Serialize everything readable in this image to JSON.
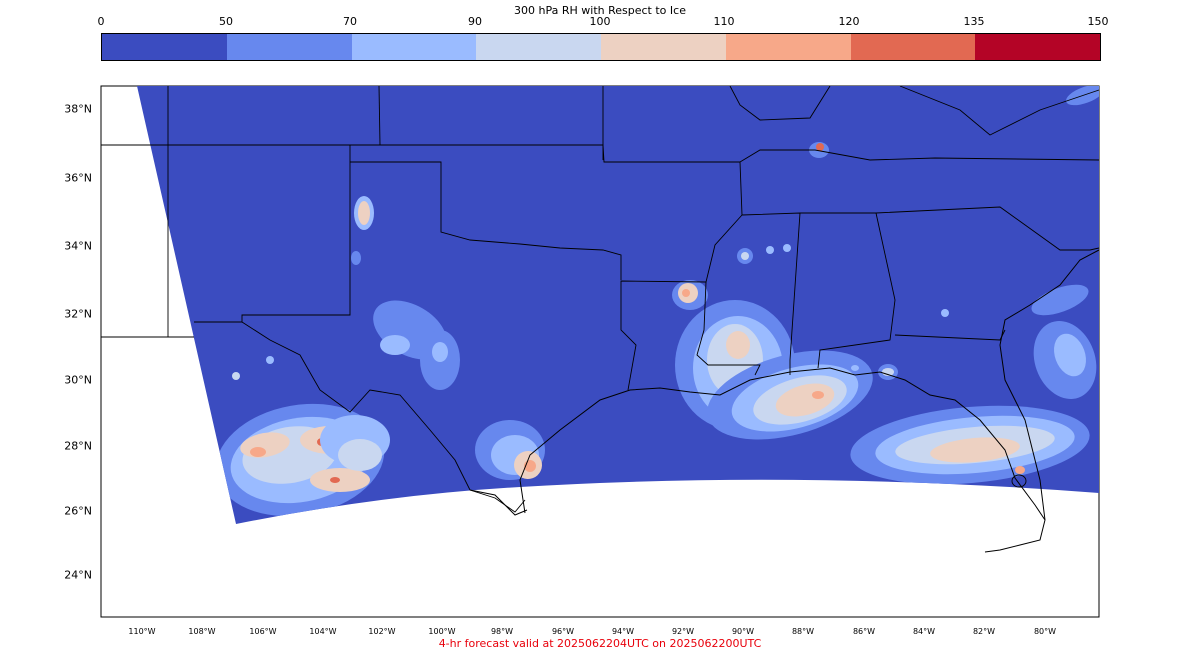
{
  "colorbar": {
    "title": "300 hPa RH with Respect to Ice",
    "ticks": [
      "0",
      "50",
      "70",
      "90",
      "100",
      "110",
      "120",
      "135",
      "150"
    ],
    "colors": [
      "#3b4cc0",
      "#6788ee",
      "#9abbff",
      "#c9d7f0",
      "#edd1c2",
      "#f7a889",
      "#e26952",
      "#b40426"
    ]
  },
  "map": {
    "lat_labels": [
      "38°N",
      "36°N",
      "34°N",
      "32°N",
      "30°N",
      "28°N",
      "26°N",
      "24°N"
    ],
    "lon_labels": [
      "110°W",
      "108°W",
      "106°W",
      "104°W",
      "102°W",
      "100°W",
      "98°W",
      "96°W",
      "94°W",
      "92°W",
      "90°W",
      "88°W",
      "86°W",
      "84°W",
      "82°W",
      "80°W"
    ],
    "background_color": "#3b4cc0",
    "outline_color": "#000000"
  },
  "footer": {
    "text": "4-hr forecast valid at 2025062204UTC on 2025062200UTC",
    "color": "#e8000b"
  }
}
